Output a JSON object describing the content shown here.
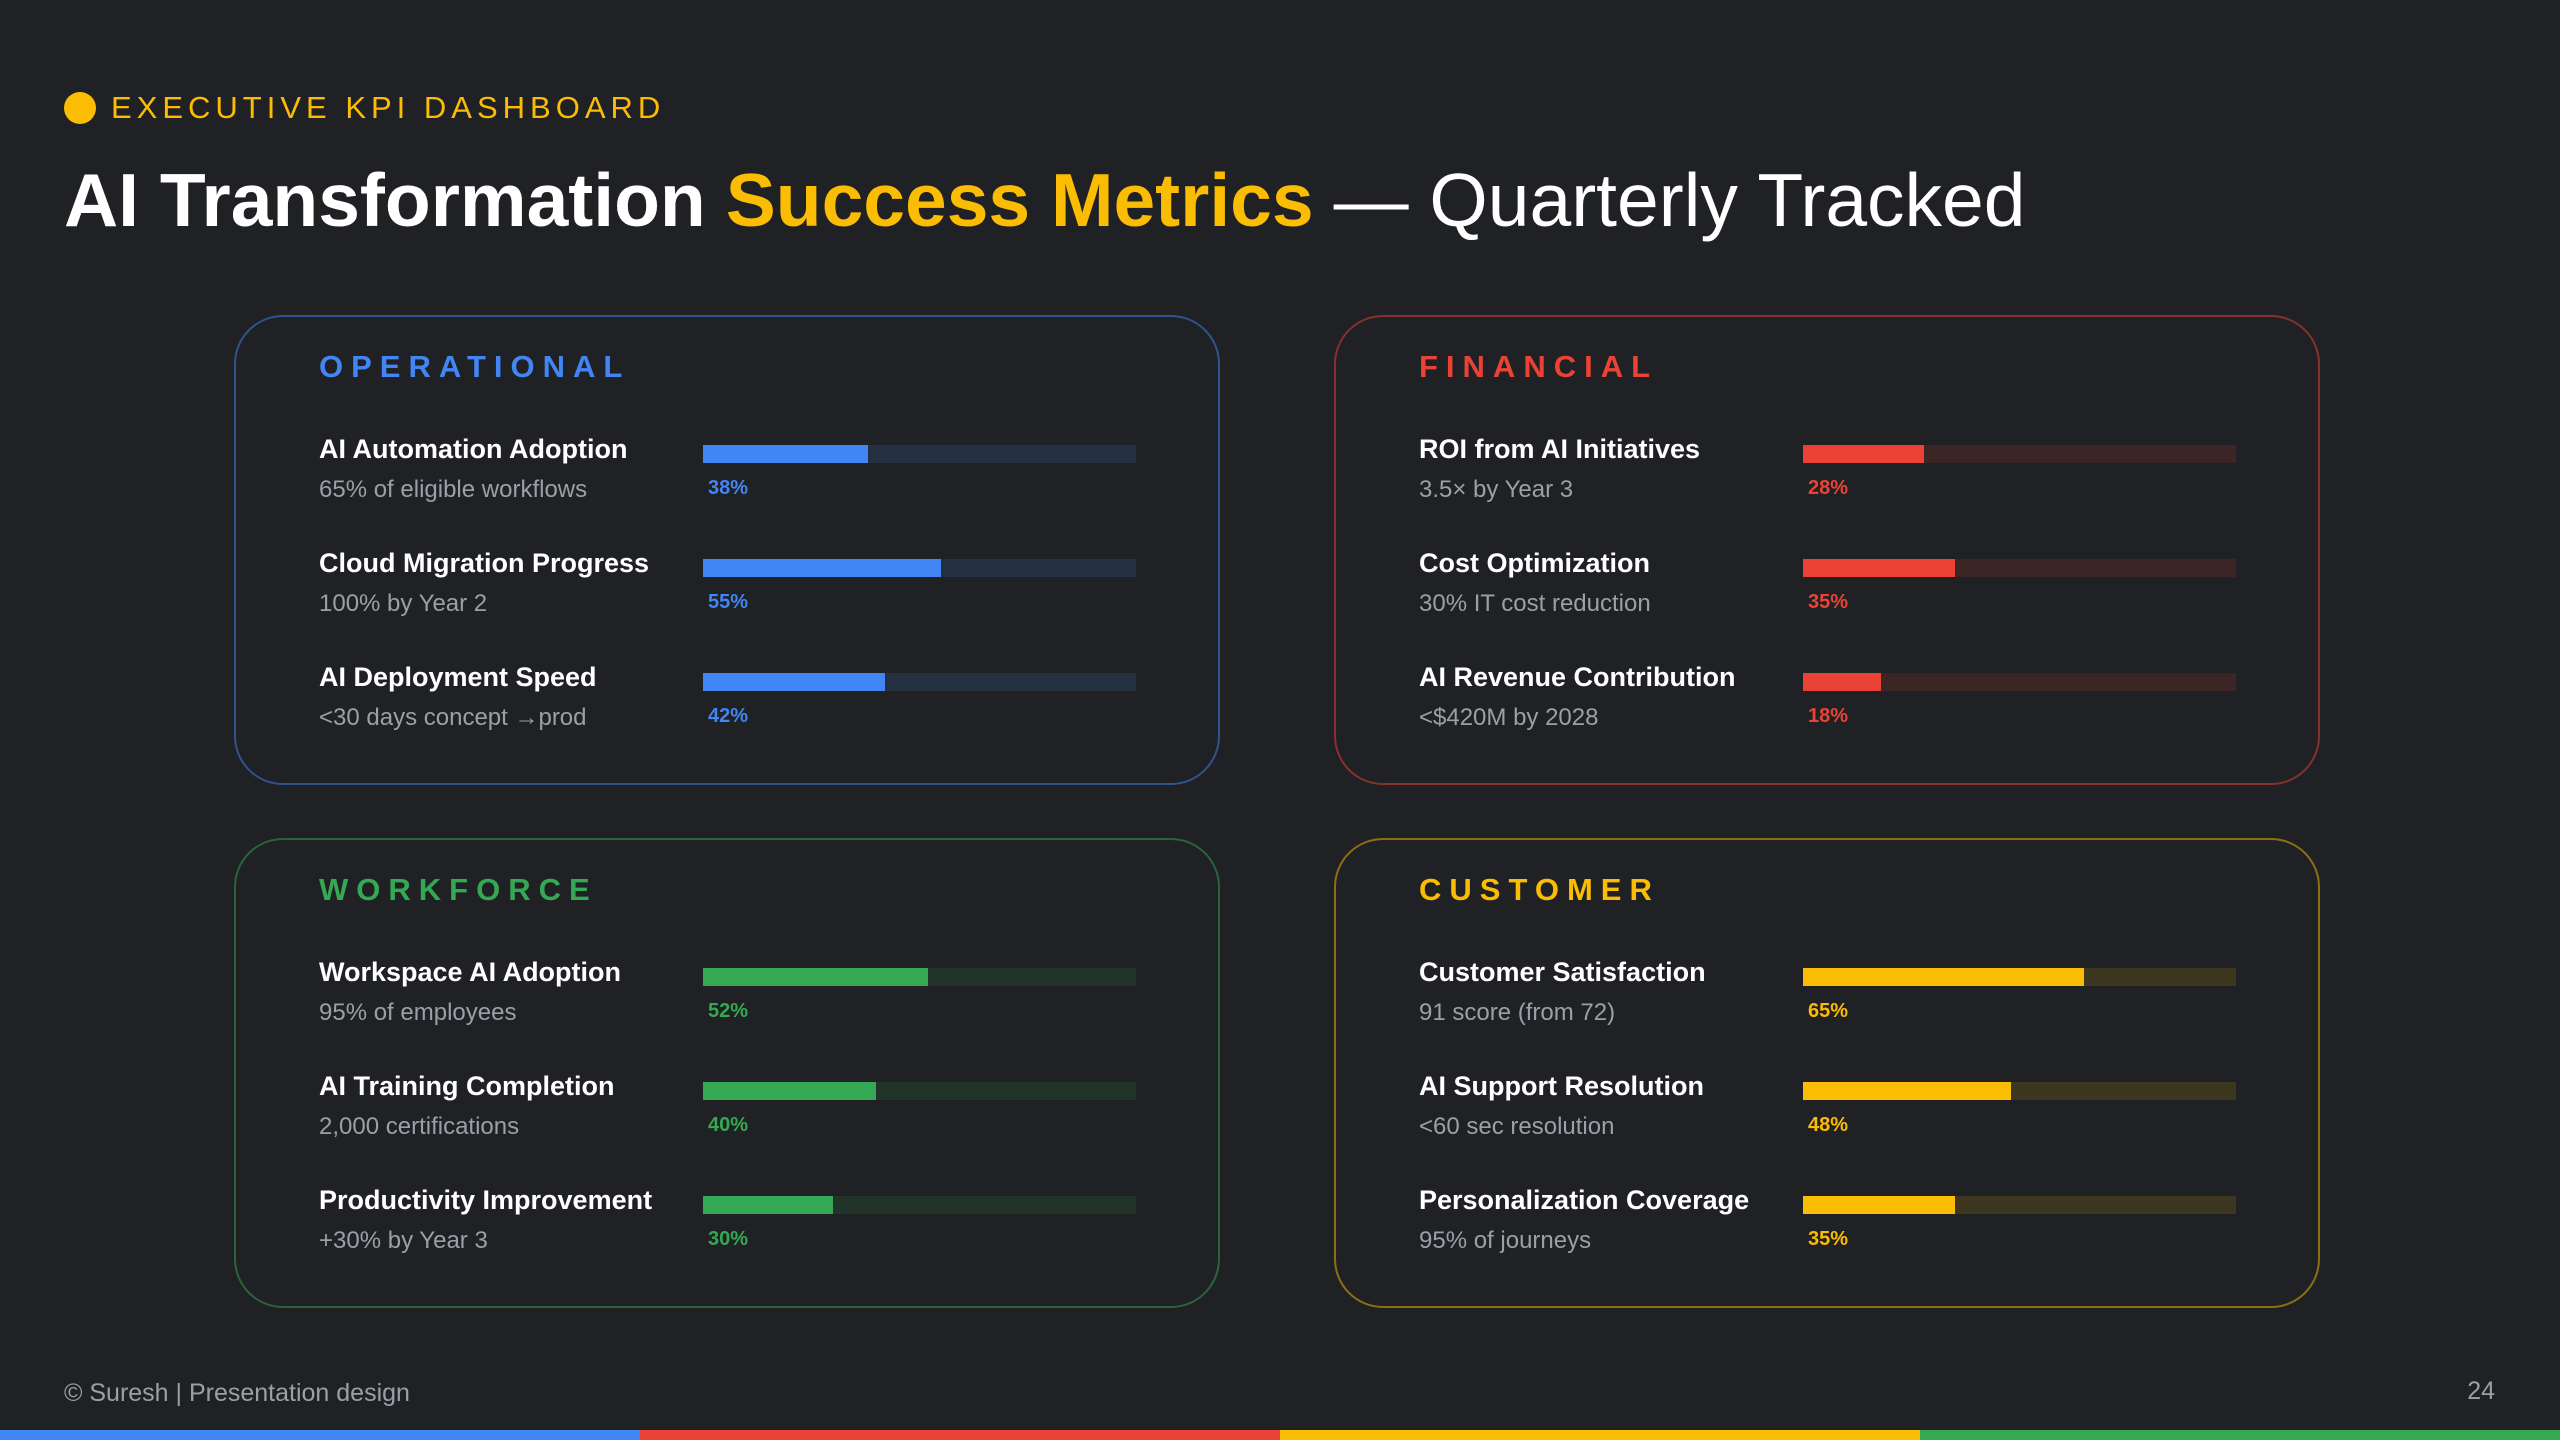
{
  "header": {
    "eyebrow": "EXECUTIVE KPI DASHBOARD",
    "title": {
      "part1": "AI Transformation",
      "highlight": "Success Metrics",
      "part2": "— Quarterly Tracked"
    }
  },
  "cards": [
    {
      "title": "OPERATIONAL",
      "color": "#4285f4",
      "metrics": [
        {
          "name": "AI Automation Adoption",
          "target": "65% of eligible workflows",
          "progress": 38,
          "progress_label": "38%"
        },
        {
          "name": "Cloud Migration Progress",
          "target": "100% by Year 2",
          "progress": 55,
          "progress_label": "55%"
        },
        {
          "name": "AI Deployment Speed",
          "target": "<30 days concept →prod",
          "progress": 42,
          "progress_label": "42%"
        }
      ]
    },
    {
      "title": "FINANCIAL",
      "color": "#ea4335",
      "metrics": [
        {
          "name": "ROI from AI Initiatives",
          "target": "3.5× by Year 3",
          "progress": 28,
          "progress_label": "28%"
        },
        {
          "name": "Cost Optimization",
          "target": "30% IT cost reduction",
          "progress": 35,
          "progress_label": "35%"
        },
        {
          "name": "AI Revenue Contribution",
          "target": "<$420M by 2028",
          "progress": 18,
          "progress_label": "18%"
        }
      ]
    },
    {
      "title": "WORKFORCE",
      "color": "#34a853",
      "metrics": [
        {
          "name": "Workspace AI Adoption",
          "target": "95% of employees",
          "progress": 52,
          "progress_label": "52%"
        },
        {
          "name": "AI Training Completion",
          "target": "2,000 certifications",
          "progress": 40,
          "progress_label": "40%"
        },
        {
          "name": "Productivity Improvement",
          "target": "+30% by Year 3",
          "progress": 30,
          "progress_label": "30%"
        }
      ]
    },
    {
      "title": "CUSTOMER",
      "color": "#fbbc04",
      "metrics": [
        {
          "name": "Customer Satisfaction",
          "target": "91 score (from 72)",
          "progress": 65,
          "progress_label": "65%"
        },
        {
          "name": "AI Support Resolution",
          "target": "<60 sec resolution",
          "progress": 48,
          "progress_label": "48%"
        },
        {
          "name": "Personalization Coverage",
          "target": "95% of journeys",
          "progress": 35,
          "progress_label": "35%"
        }
      ]
    }
  ],
  "footer": {
    "credit": "© Suresh | Presentation design",
    "page": "24"
  }
}
